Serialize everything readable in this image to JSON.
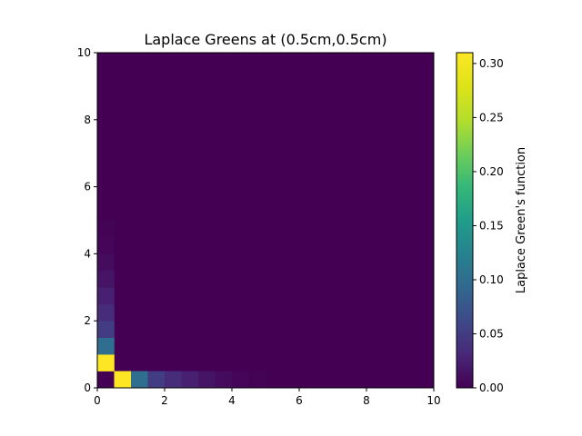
{
  "chart_data": {
    "type": "heatmap",
    "title": "Laplace Greens at (0.5cm,0.5cm)",
    "xlabel": "",
    "ylabel": "",
    "xlim": [
      0,
      10
    ],
    "ylim": [
      0,
      10
    ],
    "x_ticks": [
      "0",
      "2",
      "4",
      "6",
      "8",
      "10"
    ],
    "y_ticks": [
      "0",
      "2",
      "4",
      "6",
      "8",
      "10"
    ],
    "grid": false,
    "cell_size": 0.5,
    "default_value": 0.0,
    "colormap": "viridis",
    "colorbar": {
      "label": "Laplace Green's function",
      "range": [
        0,
        0.31
      ],
      "ticks": [
        "0.00",
        "0.05",
        "0.10",
        "0.15",
        "0.20",
        "0.25",
        "0.30"
      ]
    },
    "cells": [
      {
        "x": 0.0,
        "y": 0.0,
        "value": 0.0
      },
      {
        "x": 0.0,
        "y": 0.5,
        "value": 0.31
      },
      {
        "x": 0.0,
        "y": 1.0,
        "value": 0.1
      },
      {
        "x": 0.0,
        "y": 1.5,
        "value": 0.05
      },
      {
        "x": 0.0,
        "y": 2.0,
        "value": 0.035
      },
      {
        "x": 0.0,
        "y": 2.5,
        "value": 0.025
      },
      {
        "x": 0.0,
        "y": 3.0,
        "value": 0.015
      },
      {
        "x": 0.0,
        "y": 3.5,
        "value": 0.008
      },
      {
        "x": 0.0,
        "y": 4.0,
        "value": 0.004
      },
      {
        "x": 0.0,
        "y": 4.5,
        "value": 0.002
      },
      {
        "x": 0.5,
        "y": 0.0,
        "value": 0.31
      },
      {
        "x": 1.0,
        "y": 0.0,
        "value": 0.1
      },
      {
        "x": 1.5,
        "y": 0.0,
        "value": 0.05
      },
      {
        "x": 2.0,
        "y": 0.0,
        "value": 0.035
      },
      {
        "x": 2.5,
        "y": 0.0,
        "value": 0.025
      },
      {
        "x": 3.0,
        "y": 0.0,
        "value": 0.015
      },
      {
        "x": 3.5,
        "y": 0.0,
        "value": 0.008
      },
      {
        "x": 4.0,
        "y": 0.0,
        "value": 0.004
      },
      {
        "x": 4.5,
        "y": 0.0,
        "value": 0.002
      }
    ]
  }
}
